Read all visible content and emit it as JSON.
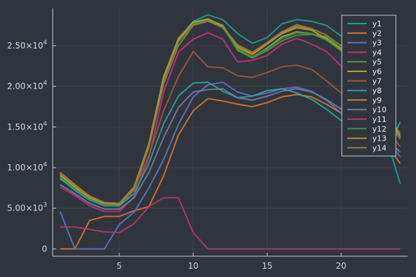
{
  "colors": {
    "background": "#30343d",
    "grid": "#474c56",
    "axis": "#c8cacf",
    "text": "#d6d8dc",
    "legend_bg": "#30343d",
    "legend_border": "#c8cacf"
  },
  "chart_data": {
    "type": "line",
    "xlim": [
      0.5,
      24.5
    ],
    "ylim": [
      -900,
      29600
    ],
    "xticks": [
      5,
      10,
      15,
      20
    ],
    "yticks": [
      {
        "value": 0,
        "mant": "0",
        "exp": ""
      },
      {
        "value": 5000,
        "mant": "5.00×10",
        "exp": "3"
      },
      {
        "value": 10000,
        "mant": "1.00×10",
        "exp": "4"
      },
      {
        "value": 15000,
        "mant": "1.50×10",
        "exp": "4"
      },
      {
        "value": 20000,
        "mant": "2.00×10",
        "exp": "4"
      },
      {
        "value": 25000,
        "mant": "2.50×10",
        "exp": "4"
      }
    ],
    "grid": true,
    "legend_position": "top-right",
    "x": [
      1,
      2,
      3,
      4,
      5,
      6,
      7,
      8,
      9,
      10,
      11,
      12,
      13,
      14,
      15,
      16,
      17,
      18,
      19,
      20,
      21,
      22,
      23,
      24
    ],
    "series": [
      {
        "name": "y1",
        "color": "#1a9e8f",
        "values": [
          8600,
          7500,
          6200,
          5400,
          5300,
          7200,
          12500,
          20500,
          25800,
          28000,
          28800,
          28200,
          26500,
          25300,
          26000,
          27700,
          28200,
          28000,
          27500,
          26200,
          24500,
          20000,
          14000,
          8000
        ]
      },
      {
        "name": "y2",
        "color": "#d4782e",
        "values": [
          0,
          0,
          3500,
          4000,
          4000,
          4700,
          5200,
          9000,
          14000,
          17000,
          18500,
          18200,
          17800,
          17500,
          18000,
          18700,
          19000,
          18700,
          17800,
          16700,
          15600,
          14600,
          13000,
          10500
        ]
      },
      {
        "name": "y3",
        "color": "#5b74c4",
        "values": [
          4600,
          0,
          0,
          0,
          3000,
          4500,
          7500,
          11000,
          15300,
          18700,
          20200,
          20500,
          19300,
          18800,
          19200,
          19700,
          19900,
          19400,
          18300,
          16700,
          15700,
          14800,
          13800,
          11300
        ]
      },
      {
        "name": "y4",
        "color": "#c2317a",
        "values": [
          7600,
          6600,
          5300,
          4600,
          4600,
          6400,
          11200,
          19300,
          24200,
          25800,
          26600,
          25800,
          23000,
          23200,
          23800,
          25200,
          25900,
          25200,
          24300,
          22500,
          20700,
          18300,
          15600,
          13500
        ]
      },
      {
        "name": "y5",
        "color": "#4f9a3e",
        "values": [
          8800,
          7400,
          6100,
          5400,
          5300,
          7300,
          12700,
          20800,
          25500,
          27600,
          28300,
          27400,
          24400,
          23500,
          24400,
          25600,
          26300,
          26400,
          26100,
          24700,
          22200,
          19300,
          16000,
          13600
        ]
      },
      {
        "name": "y6",
        "color": "#c89a2d",
        "values": [
          9000,
          7500,
          6200,
          5500,
          5400,
          7400,
          12800,
          21000,
          25600,
          27700,
          28200,
          27400,
          24600,
          23600,
          24700,
          26100,
          26700,
          26500,
          25800,
          24400,
          22300,
          19300,
          16000,
          13800
        ]
      },
      {
        "name": "y7",
        "color": "#a0563c",
        "values": [
          9200,
          7700,
          6300,
          5500,
          5400,
          7200,
          11500,
          17000,
          21200,
          24300,
          22400,
          22300,
          21300,
          21100,
          21700,
          22400,
          22600,
          22100,
          20700,
          19200,
          17700,
          16300,
          14700,
          12600
        ]
      },
      {
        "name": "y8",
        "color": "#2ba59a",
        "values": [
          8700,
          7200,
          6000,
          5300,
          5300,
          6800,
          10500,
          15400,
          18800,
          20400,
          20500,
          19400,
          18600,
          18800,
          19500,
          19700,
          19200,
          18400,
          17200,
          15800,
          14500,
          13200,
          12000,
          15600
        ]
      },
      {
        "name": "y9",
        "color": "#c98234",
        "values": [
          9400,
          7900,
          6500,
          5700,
          5600,
          7600,
          12900,
          21200,
          25900,
          27900,
          28200,
          27500,
          24800,
          23900,
          25200,
          26600,
          27400,
          27000,
          25700,
          24400,
          22300,
          19400,
          16000,
          14000
        ]
      },
      {
        "name": "y10",
        "color": "#717ea5",
        "values": [
          7900,
          6800,
          5600,
          4900,
          4900,
          6300,
          9400,
          13700,
          17400,
          19300,
          19600,
          19700,
          18600,
          18300,
          18800,
          19400,
          19700,
          19300,
          18400,
          17200,
          16000,
          14900,
          13600,
          11900
        ]
      },
      {
        "name": "y11",
        "color": "#b23a66",
        "values": [
          2700,
          2700,
          2400,
          2100,
          2000,
          3100,
          5200,
          6300,
          6300,
          2000,
          0,
          0,
          0,
          0,
          0,
          0,
          0,
          0,
          0,
          0,
          0,
          0,
          0,
          0
        ]
      },
      {
        "name": "y12",
        "color": "#389045",
        "values": [
          8900,
          7400,
          6100,
          5400,
          5400,
          7400,
          12800,
          21000,
          25500,
          27700,
          28100,
          27200,
          24600,
          23600,
          24600,
          25900,
          26600,
          26500,
          25700,
          24400,
          22300,
          19200,
          16000,
          13700
        ]
      },
      {
        "name": "y13",
        "color": "#a4a028",
        "values": [
          9100,
          7600,
          6300,
          5600,
          5500,
          7500,
          12900,
          21100,
          25700,
          27900,
          28300,
          27400,
          24900,
          24000,
          25200,
          26500,
          27200,
          26900,
          25900,
          24600,
          22500,
          19500,
          16200,
          14000
        ]
      },
      {
        "name": "y14",
        "color": "#9a7a48",
        "values": [
          9300,
          7800,
          6500,
          5700,
          5600,
          7400,
          12500,
          20300,
          25000,
          27500,
          28000,
          27300,
          25100,
          24200,
          25400,
          26700,
          27600,
          27100,
          26300,
          25000,
          22900,
          19900,
          16500,
          14300
        ]
      }
    ]
  }
}
